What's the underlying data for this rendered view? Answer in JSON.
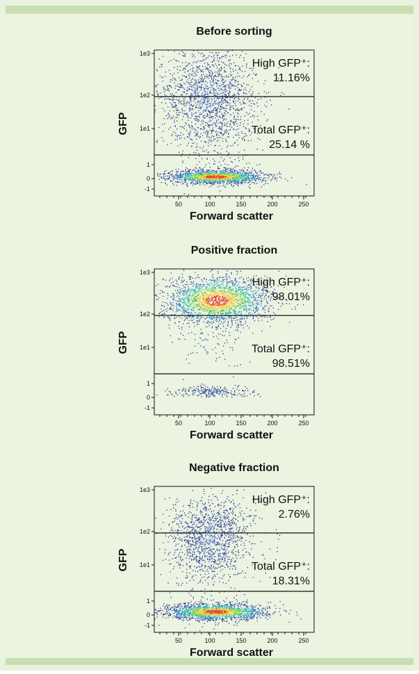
{
  "panels": [
    {
      "title": "Before sorting",
      "y_label": "GFP",
      "x_label": "Forward scatter",
      "yticks": [
        "1e3",
        "1e2",
        "1e1",
        "1",
        "0",
        "-1"
      ],
      "xticks": [
        50,
        100,
        150,
        200,
        250
      ],
      "high_label": "High GFP⁺:",
      "high_value": "11.16%",
      "total_label": "Total GFP⁺:",
      "total_value": "25.14 %"
    },
    {
      "title": "Positive fraction",
      "y_label": "GFP",
      "x_label": "Forward scatter",
      "yticks": [
        "1e3",
        "1e2",
        "1e1",
        "1",
        "0",
        "-1"
      ],
      "xticks": [
        50,
        100,
        150,
        200,
        250
      ],
      "high_label": "High GFP⁺:",
      "high_value": "98.01%",
      "total_label": "Total GFP⁺:",
      "total_value": "98.51%"
    },
    {
      "title": "Negative fraction",
      "y_label": "GFP",
      "x_label": "Forward scatter",
      "yticks": [
        "1e3",
        "1e2",
        "1e1",
        "1",
        "0",
        "-1"
      ],
      "xticks": [
        50,
        100,
        150,
        200,
        250
      ],
      "high_label": "High GFP⁺:",
      "high_value": "2.76%",
      "total_label": "Total GFP⁺:",
      "total_value": "18.31%"
    }
  ]
}
